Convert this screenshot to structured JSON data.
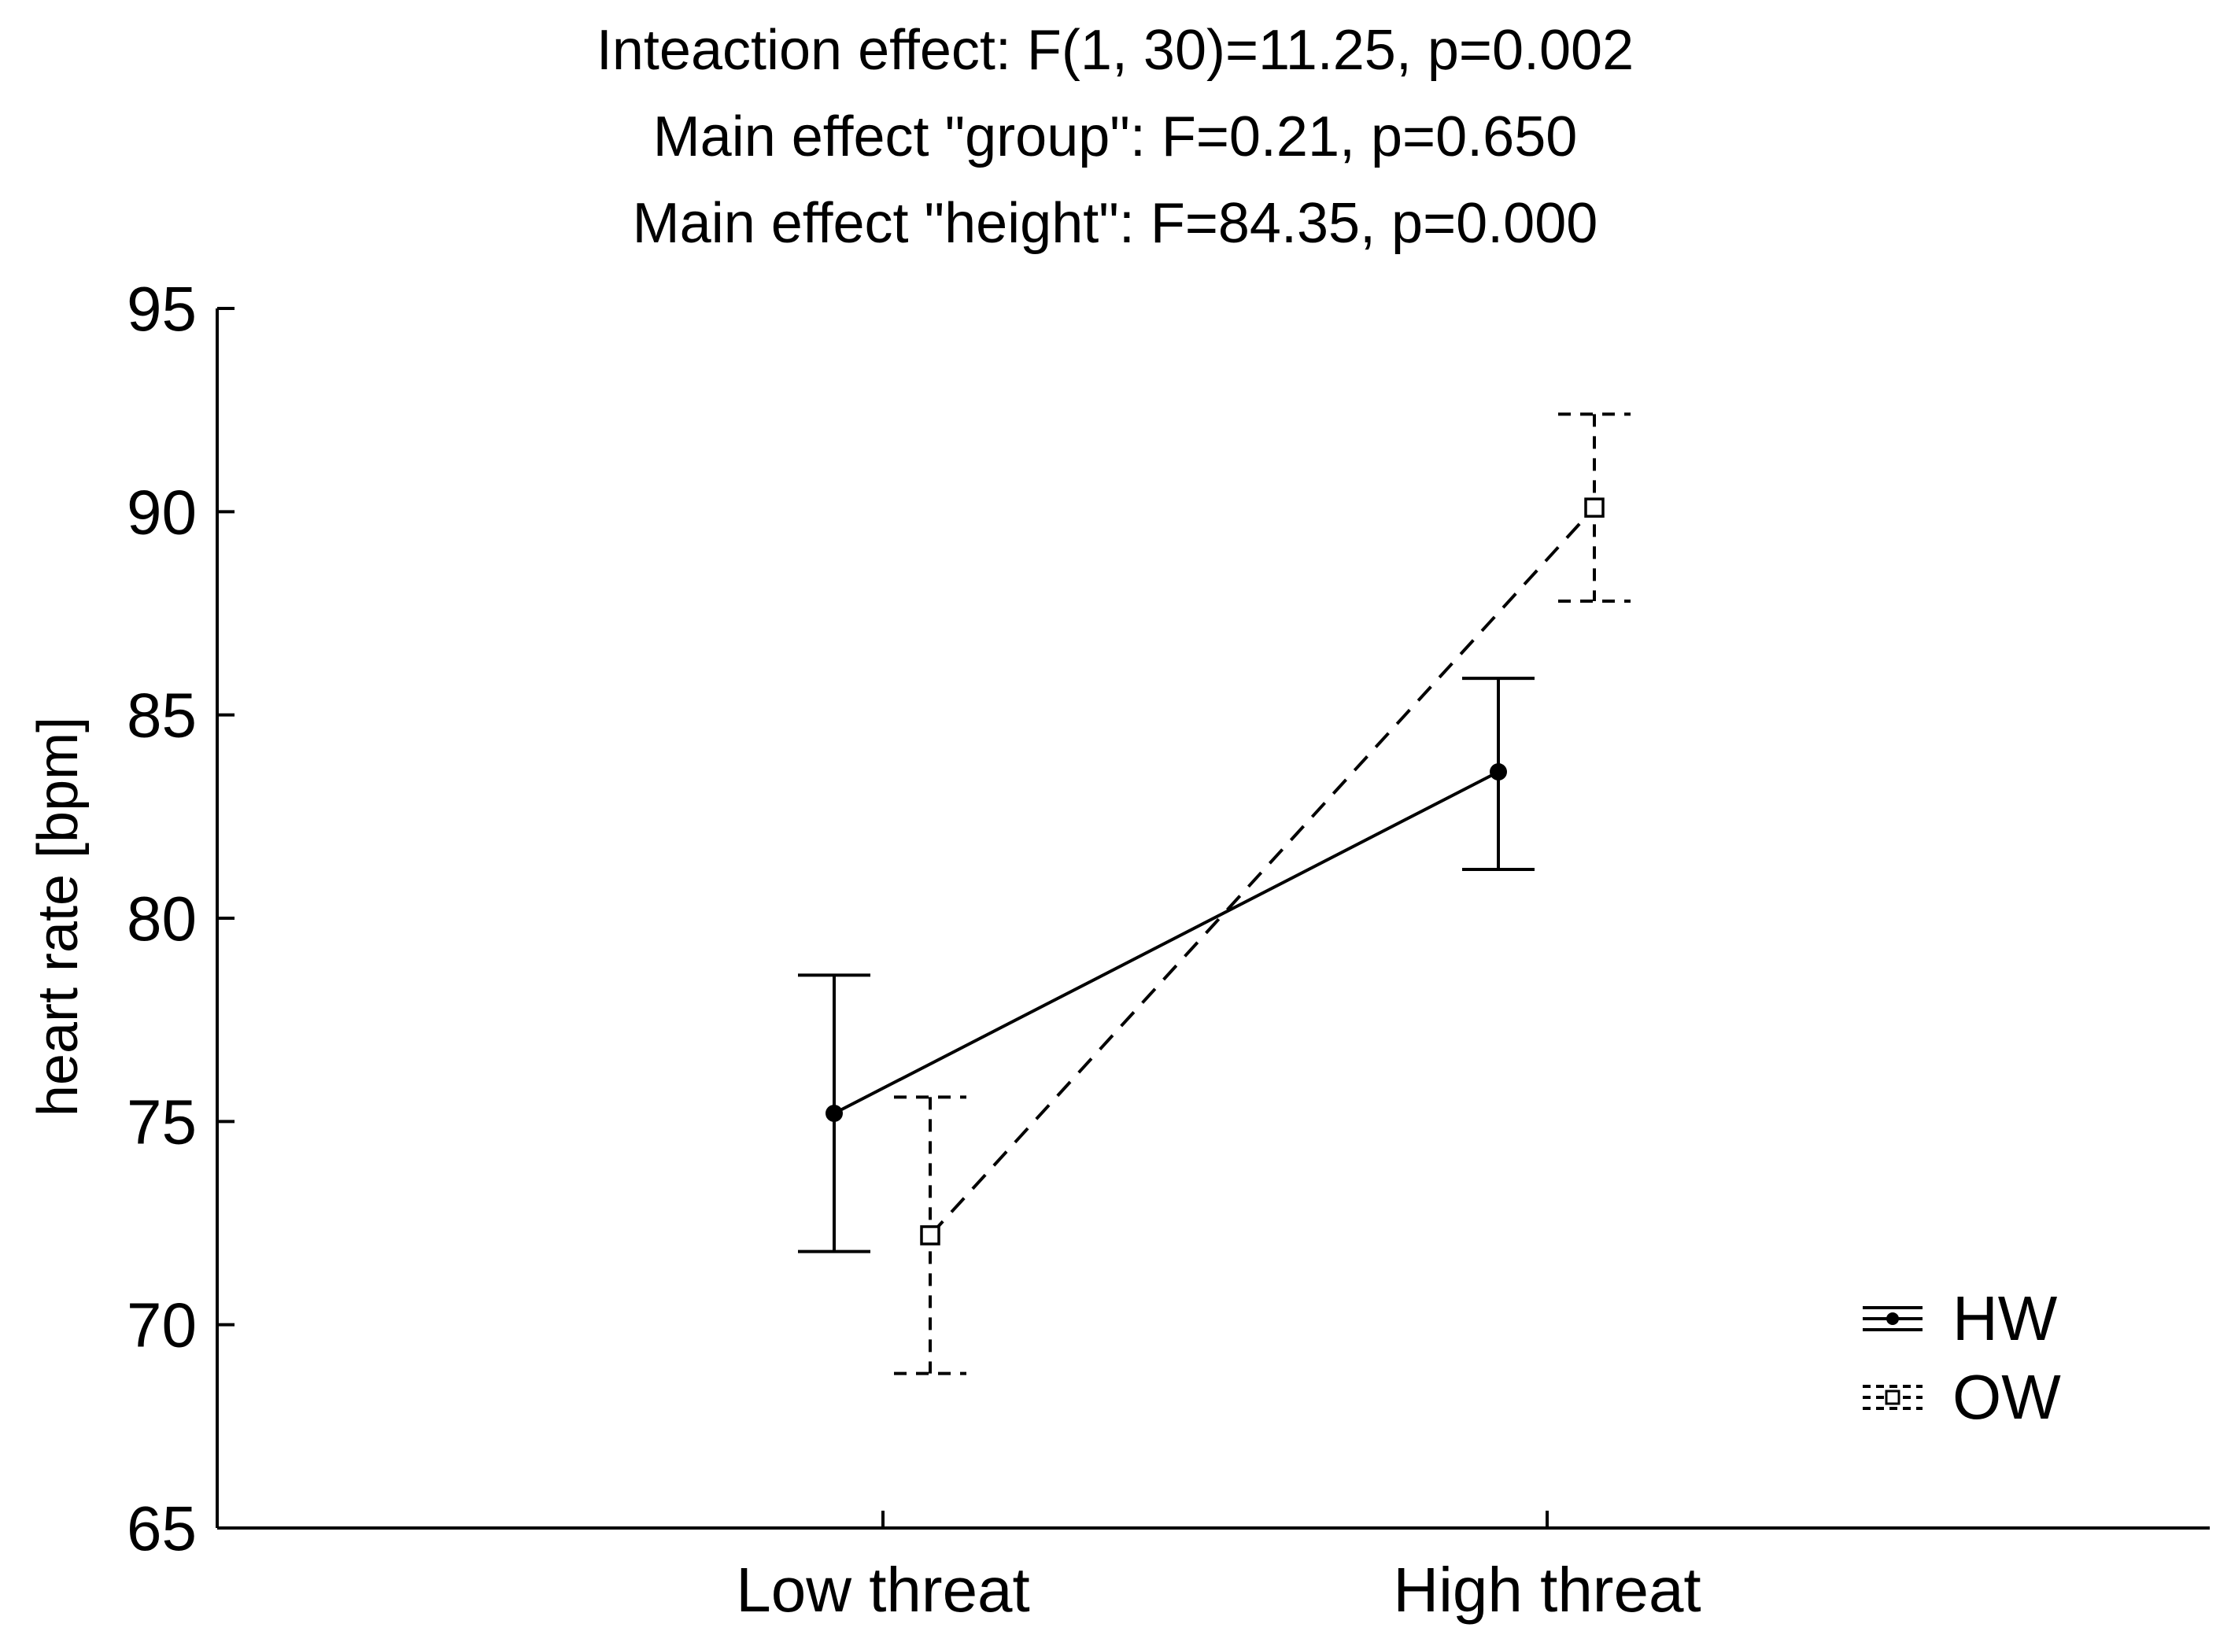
{
  "chart_data": {
    "type": "line",
    "title_lines": [
      "Inteaction effect: F(1, 30)=11.25, p=0.002",
      "Main effect \"group\": F=0.21, p=0.650",
      "Main effect \"height\": F=84.35, p=0.000"
    ],
    "ylabel": "heart rate [bpm]",
    "xlabel": "",
    "ylim": [
      65,
      95
    ],
    "yticks": [
      65,
      70,
      75,
      80,
      85,
      90,
      95
    ],
    "ytick_labels": [
      "65",
      "70",
      "75",
      "80",
      "85",
      "90",
      "95"
    ],
    "categories": [
      "Low threat",
      "High threat"
    ],
    "grid": false,
    "legend_position": "bottom-right",
    "series": [
      {
        "name": "HW",
        "line_style": "solid",
        "marker": "filled-circle",
        "values": [
          75.2,
          83.6
        ],
        "error_low": [
          71.8,
          81.2
        ],
        "error_high": [
          78.6,
          85.9
        ]
      },
      {
        "name": "OW",
        "line_style": "dashed",
        "marker": "open-square",
        "values": [
          72.2,
          90.1
        ],
        "error_low": [
          68.8,
          87.8
        ],
        "error_high": [
          75.6,
          92.4
        ]
      }
    ]
  }
}
